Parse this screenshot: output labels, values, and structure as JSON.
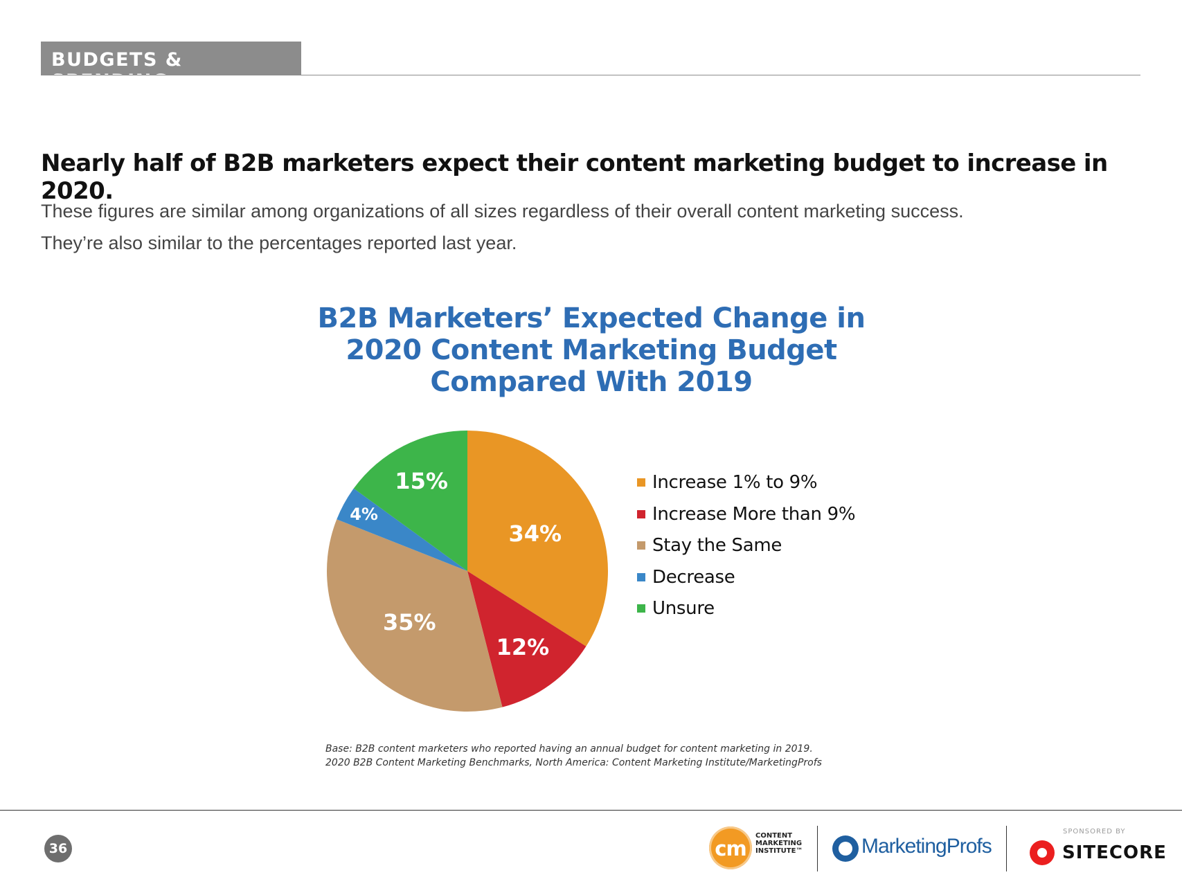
{
  "section": {
    "label": "BUDGETS & SPENDING"
  },
  "headline": "Nearly half of B2B marketers expect their content marketing budget to increase in 2020.",
  "subtext": [
    "These figures are similar among organizations of all sizes regardless of their overall content marketing success.",
    "They’re also similar to the percentages reported last year."
  ],
  "chart_data": {
    "type": "pie",
    "title": [
      "B2B Marketers’ Expected Change in",
      "2020 Content Marketing Budget",
      "Compared With 2019"
    ],
    "slices": [
      {
        "label": "Increase 1% to 9%",
        "value": 34,
        "display": "34%",
        "color": "#e99625"
      },
      {
        "label": "Increase More than 9%",
        "value": 12,
        "display": "12%",
        "color": "#d0242e"
      },
      {
        "label": "Stay the Same",
        "value": 35,
        "display": "35%",
        "color": "#c49a6c"
      },
      {
        "label": "Decrease",
        "value": 4,
        "display": "4%",
        "color": "#3a87c8"
      },
      {
        "label": "Unsure",
        "value": 15,
        "display": "15%",
        "color": "#3db54a"
      }
    ],
    "legend_position": "right"
  },
  "footnote": [
    "Base: B2B content marketers who reported having an annual budget for content marketing in 2019.",
    "2020 B2B Content Marketing Benchmarks, North America: Content Marketing Institute/MarketingProfs"
  ],
  "footer": {
    "page_number": "36",
    "cmi_logo_lines": [
      "CONTENT",
      "MARKETING",
      "INSTITUTE™"
    ],
    "cmi_mark": "cm",
    "marketingprofs": "MarketingProfs",
    "sponsored_label": "SPONSORED BY",
    "sitecore": "SITECORE"
  }
}
